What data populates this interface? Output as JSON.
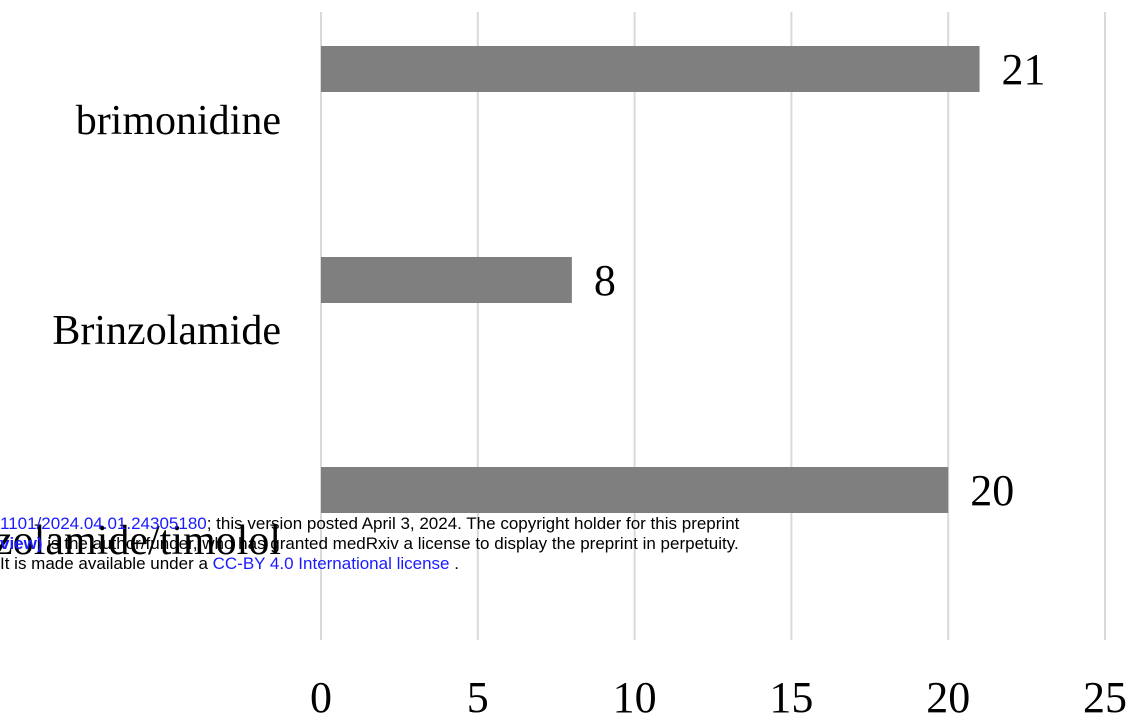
{
  "chart_data": {
    "type": "bar",
    "orientation": "horizontal",
    "categories": [
      "brimonidine",
      "Brinzolamide",
      "brinzolamide/timolol"
    ],
    "values": [
      21,
      8,
      20
    ],
    "data_labels": [
      "21",
      "8",
      "20"
    ],
    "xlim": [
      0,
      25
    ],
    "x_ticks": [
      0,
      5,
      10,
      15,
      20,
      25
    ],
    "grid": "vertical",
    "bar_color": "#7f7f7f",
    "grid_color": "#d9d9d9",
    "legend": "none"
  },
  "watermark": {
    "line1_link": "1101/2024.04.01.24305180",
    "line1_text": "; this version posted April 3, 2024. The copyright holder for this preprint",
    "line2_link": "view)",
    "line2_text": " is the author/funder, who has granted medRxiv a license to display the preprint in perpetuity.",
    "line3_text": "It is made available under a ",
    "line3_link": "CC-BY 4.0 International license",
    "line3_end": " .",
    "link_color": "#1a1aff"
  }
}
